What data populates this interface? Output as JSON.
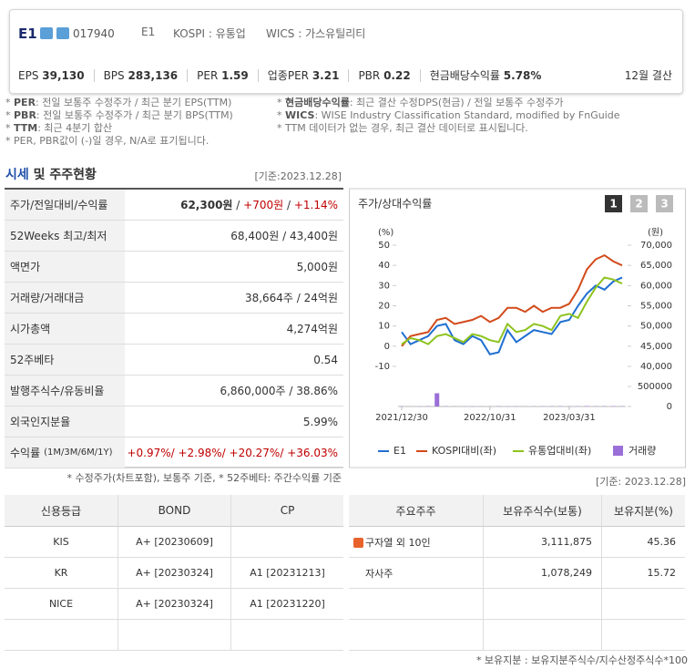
{
  "header": {
    "name": "E1",
    "code": "017940",
    "short": "E1",
    "market": "KOSPI : 유통업",
    "wics": "WICS : 가스유틸리티",
    "metrics": [
      {
        "label": "EPS",
        "value": "39,130"
      },
      {
        "label": "BPS",
        "value": "283,136"
      },
      {
        "label": "PER",
        "value": "1.59"
      },
      {
        "label": "업종PER",
        "value": "3.21"
      },
      {
        "label": "PBR",
        "value": "0.22"
      },
      {
        "label": "현금배당수익률",
        "value": "5.78%"
      }
    ],
    "settle": "12월 결산"
  },
  "notes": {
    "left": [
      {
        "key": "PER",
        "text": ": 전일 보통주 수정주가 / 최근 분기 EPS(TTM)"
      },
      {
        "key": "PBR",
        "text": ": 전일 보통주 수정주가 / 최근 분기 BPS(TTM)"
      },
      {
        "key": "TTM",
        "text": ": 최근 4분기 합산"
      },
      {
        "key": "",
        "text": "PER, PBR값이 (-)일 경우, N/A로 표기됩니다."
      }
    ],
    "right": [
      {
        "key": "현금배당수익률",
        "text": ": 최근 결산 수정DPS(현금) / 전일 보통주 수정주가"
      },
      {
        "key": "WICS",
        "text": ": WISE Industry Classification Standard, modified by FnGuide"
      },
      {
        "key": "",
        "text": "TTM 데이터가 없는 경우, 최근 결산 데이터로 표시됩니다."
      }
    ]
  },
  "section": {
    "title_a": "시세",
    "title_b": "및 주주현황",
    "date": "[기준:2023.12.28]"
  },
  "quote_table": {
    "rows": [
      {
        "label": "주가/전일대비/수익률",
        "parts": [
          {
            "text": "62,300원"
          },
          {
            "text": " / "
          },
          {
            "text": "+700원",
            "color": "#c00000"
          },
          {
            "text": " / "
          },
          {
            "text": "+1.14%",
            "color": "#c00000"
          }
        ]
      },
      {
        "label": "52Weeks 최고/최저",
        "parts": [
          {
            "text": "68,400원 / 43,400원"
          }
        ]
      },
      {
        "label": "액면가",
        "parts": [
          {
            "text": "5,000원"
          }
        ]
      },
      {
        "label": "거래량/거래대금",
        "parts": [
          {
            "text": "38,664주 / 24억원"
          }
        ]
      },
      {
        "label": "시가총액",
        "parts": [
          {
            "text": "4,274억원"
          }
        ]
      },
      {
        "label": "52주베타",
        "parts": [
          {
            "text": "0.54"
          }
        ]
      },
      {
        "label": "발행주식수/유동비율",
        "parts": [
          {
            "text": "6,860,000주 / 38.86%"
          }
        ]
      },
      {
        "label": "외국인지분율",
        "parts": [
          {
            "text": "5.99%"
          }
        ]
      },
      {
        "label": "수익률",
        "sublabel": "(1M/3M/6M/1Y)",
        "parts": [
          {
            "text": "+0.97%/ +2.98%/ +20.27%/ +36.03%",
            "color": "#c00000"
          }
        ]
      }
    ],
    "footnote": "* 수정주가(차트포함), 보통주 기준, * 52주베타: 주간수익률 기준"
  },
  "chart_data": {
    "type": "line",
    "title": "주가/상대수익률",
    "buttons": [
      "1",
      "2",
      "3"
    ],
    "ylabel": "(%)",
    "y2label": "(원)",
    "categories": [
      "2021/12/30",
      null,
      null,
      null,
      null,
      null,
      null,
      null,
      null,
      null,
      "2022/10/31",
      null,
      null,
      null,
      null,
      null,
      null,
      null,
      null,
      "2023/03/31",
      null,
      null,
      null,
      null,
      null,
      null
    ],
    "ylim": [
      -10,
      50
    ],
    "yticks": [
      50,
      40,
      30,
      20,
      10,
      0,
      -10
    ],
    "y2lim": [
      40000,
      70000
    ],
    "y2ticks": [
      {
        "value": 70000,
        "label": "70,000"
      },
      {
        "value": 65000,
        "label": "65,000"
      },
      {
        "value": 60000,
        "label": "60,000"
      },
      {
        "value": 55000,
        "label": "55,000"
      },
      {
        "value": 50000,
        "label": "50,000"
      },
      {
        "value": 45000,
        "label": "45,000"
      },
      {
        "value": 40000,
        "label": "40,000"
      }
    ],
    "y3lim": [
      0,
      500000
    ],
    "y3ticks": [
      500000,
      0
    ],
    "series": [
      {
        "name": "E1",
        "color": "#1f6fd1",
        "values": [
          7,
          1,
          3,
          5,
          10,
          11,
          3,
          1,
          5,
          3,
          -4,
          -3,
          8,
          2,
          5,
          8,
          7,
          6,
          12,
          13,
          20,
          26,
          30,
          28,
          32,
          34
        ]
      },
      {
        "name": "KOSPI대비(좌)",
        "color": "#d24a1a",
        "values": [
          0,
          5,
          6,
          7,
          13,
          14,
          11,
          12,
          13,
          15,
          12,
          14,
          19,
          19,
          17,
          20,
          17,
          19,
          19,
          21,
          28,
          38,
          43,
          45,
          42,
          40
        ]
      },
      {
        "name": "유통업대비(좌)",
        "color": "#8dc31e",
        "values": [
          1,
          4,
          3,
          1,
          5,
          6,
          4,
          2,
          6,
          5,
          3,
          2,
          11,
          7,
          8,
          11,
          10,
          8,
          15,
          16,
          14,
          22,
          29,
          34,
          33,
          31
        ]
      },
      {
        "name": "거래량",
        "color": "#9b6fd8",
        "axis": "y3",
        "values": [
          5000,
          3000,
          4000,
          8000,
          330000,
          6000,
          4000,
          3000,
          5000,
          4000,
          3000,
          6000,
          4000,
          5000,
          3000,
          4000,
          5000,
          6000,
          7000,
          4000,
          5000,
          10000,
          6000,
          8000,
          9000,
          6000
        ]
      }
    ],
    "date": "[기준: 2023.12.28]"
  },
  "credit_table": {
    "header": [
      "신용등급",
      "BOND",
      "CP"
    ],
    "rows": [
      [
        "KIS",
        "A+  [20230609]",
        ""
      ],
      [
        "KR",
        "A+  [20230324]",
        "A1  [20231213]"
      ],
      [
        "NICE",
        "A+  [20230324]",
        "A1  [20231220]"
      ]
    ]
  },
  "holder_table": {
    "header": [
      "주요주주",
      "보유주식수(보통)",
      "보유지분(%)"
    ],
    "rows": [
      [
        "구자열 외 10인",
        "3,111,875",
        "45.36"
      ],
      [
        "자사주",
        "1,078,249",
        "15.72"
      ]
    ],
    "footnote": "* 보유지분 : 보유지분주식수/지수산정주식수*100"
  }
}
